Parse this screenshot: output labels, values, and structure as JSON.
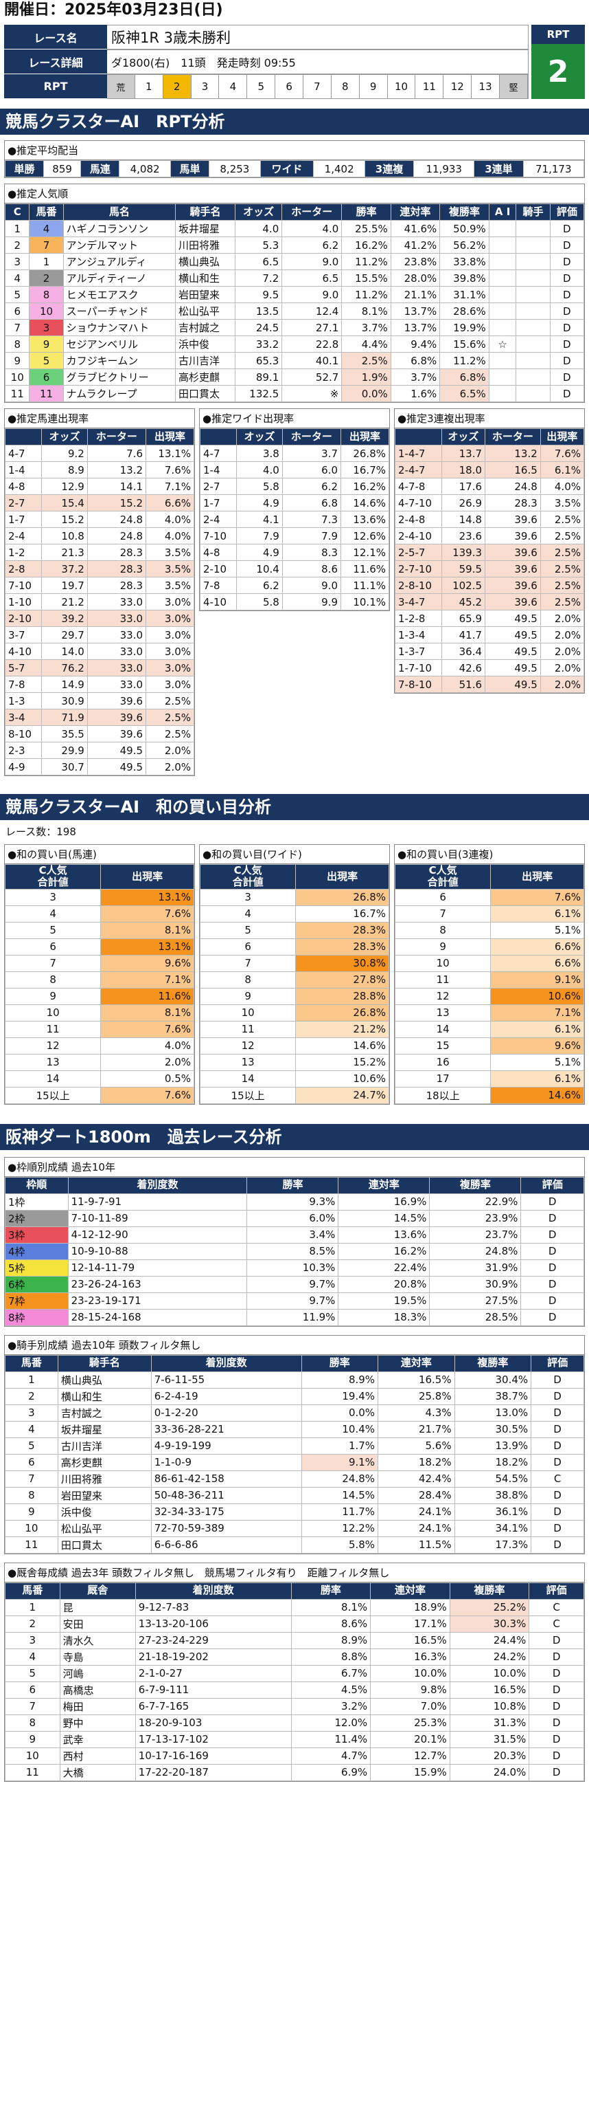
{
  "date": "開催日：2025年03月23日(日)",
  "race": {
    "labels": [
      "レース名",
      "レース詳細",
      "RPT"
    ],
    "name": "阪神1R 3歳未勝利",
    "detail": "ダ1800(右)　11頭　発走時刻 09:55",
    "scale_left": "荒",
    "scale_right": "堅",
    "scale": [
      "1",
      "2",
      "3",
      "4",
      "5",
      "6",
      "7",
      "8",
      "9",
      "10",
      "11",
      "12",
      "13"
    ],
    "rpt_label": "RPT",
    "rpt_value": "2"
  },
  "sec1": "競馬クラスターAI　RPT分析",
  "avg": {
    "title": "●推定平均配当",
    "items": [
      [
        "単勝",
        "859"
      ],
      [
        "馬連",
        "4,082"
      ],
      [
        "馬単",
        "8,253"
      ],
      [
        "ワイド",
        "1,402"
      ],
      [
        "3連複",
        "11,933"
      ],
      [
        "3連単",
        "71,173"
      ]
    ]
  },
  "pop": {
    "title": "●推定人気順",
    "headers": [
      "C",
      "馬番",
      "馬名",
      "騎手名",
      "オッズ",
      "ホーター",
      "勝率",
      "連対率",
      "複勝率",
      "A I",
      "騎手",
      "評価"
    ],
    "rows": [
      [
        "1",
        "4",
        "ハギノコランソン",
        "坂井瑠星",
        "4.0",
        "4.0",
        "25.5%",
        "41.6%",
        "50.9%",
        "",
        "",
        "D"
      ],
      [
        "2",
        "7",
        "アンデルマット",
        "川田将雅",
        "5.3",
        "6.2",
        "16.2%",
        "41.2%",
        "56.2%",
        "",
        "",
        "D"
      ],
      [
        "3",
        "1",
        "アンジュアルディ",
        "横山典弘",
        "6.5",
        "9.0",
        "11.2%",
        "23.8%",
        "33.8%",
        "",
        "",
        "D"
      ],
      [
        "4",
        "2",
        "アルディティーノ",
        "横山和生",
        "7.2",
        "6.5",
        "15.5%",
        "28.0%",
        "39.8%",
        "",
        "",
        "D"
      ],
      [
        "5",
        "8",
        "ヒメモエアスク",
        "岩田望来",
        "9.5",
        "9.0",
        "11.2%",
        "21.1%",
        "31.1%",
        "",
        "",
        "D"
      ],
      [
        "6",
        "10",
        "スーパーチャンド",
        "松山弘平",
        "13.5",
        "12.4",
        "8.1%",
        "13.7%",
        "28.6%",
        "",
        "",
        "D"
      ],
      [
        "7",
        "3",
        "ショウナンマハト",
        "吉村誠之",
        "24.5",
        "27.1",
        "3.7%",
        "13.7%",
        "19.9%",
        "",
        "",
        "D"
      ],
      [
        "8",
        "9",
        "セジアンベリル",
        "浜中俊",
        "33.2",
        "22.8",
        "4.4%",
        "9.4%",
        "15.6%",
        "☆",
        "",
        "D"
      ],
      [
        "9",
        "5",
        "カフジキームン",
        "古川吉洋",
        "65.3",
        "40.1",
        "2.5%",
        "6.8%",
        "11.2%",
        "",
        "",
        "D"
      ],
      [
        "10",
        "6",
        "グラブビクトリー",
        "高杉吏麒",
        "89.1",
        "52.7",
        "1.9%",
        "3.7%",
        "6.8%",
        "",
        "",
        "D"
      ],
      [
        "11",
        "11",
        "ナムラクレープ",
        "田口貫太",
        "132.5",
        "※",
        "0.0%",
        "1.6%",
        "6.5%",
        "",
        "",
        "D"
      ]
    ]
  },
  "umaren": {
    "title": "●推定馬連出現率",
    "headers": [
      "",
      "オッズ",
      "ホーター",
      "出現率"
    ],
    "rows": [
      [
        "4-7",
        "9.2",
        "7.6",
        "13.1%"
      ],
      [
        "1-4",
        "8.9",
        "13.2",
        "7.6%"
      ],
      [
        "4-8",
        "12.9",
        "14.1",
        "7.1%"
      ],
      [
        "2-7",
        "15.4",
        "15.2",
        "6.6%"
      ],
      [
        "1-7",
        "15.2",
        "24.8",
        "4.0%"
      ],
      [
        "2-4",
        "10.8",
        "24.8",
        "4.0%"
      ],
      [
        "1-2",
        "21.3",
        "28.3",
        "3.5%"
      ],
      [
        "2-8",
        "37.2",
        "28.3",
        "3.5%"
      ],
      [
        "7-10",
        "19.7",
        "28.3",
        "3.5%"
      ],
      [
        "1-10",
        "21.2",
        "33.0",
        "3.0%"
      ],
      [
        "2-10",
        "39.2",
        "33.0",
        "3.0%"
      ],
      [
        "3-7",
        "29.7",
        "33.0",
        "3.0%"
      ],
      [
        "4-10",
        "14.0",
        "33.0",
        "3.0%"
      ],
      [
        "5-7",
        "76.2",
        "33.0",
        "3.0%"
      ],
      [
        "7-8",
        "14.9",
        "33.0",
        "3.0%"
      ],
      [
        "1-3",
        "30.9",
        "39.6",
        "2.5%"
      ],
      [
        "3-4",
        "71.9",
        "39.6",
        "2.5%"
      ],
      [
        "8-10",
        "35.5",
        "39.6",
        "2.5%"
      ],
      [
        "2-3",
        "29.9",
        "49.5",
        "2.0%"
      ],
      [
        "4-9",
        "30.7",
        "49.5",
        "2.0%"
      ]
    ]
  },
  "wide": {
    "title": "●推定ワイド出現率",
    "headers": [
      "",
      "オッズ",
      "ホーター",
      "出現率"
    ],
    "rows": [
      [
        "4-7",
        "3.8",
        "3.7",
        "26.8%"
      ],
      [
        "1-4",
        "4.0",
        "6.0",
        "16.7%"
      ],
      [
        "2-7",
        "5.8",
        "6.2",
        "16.2%"
      ],
      [
        "1-7",
        "4.9",
        "6.8",
        "14.6%"
      ],
      [
        "2-4",
        "4.1",
        "7.3",
        "13.6%"
      ],
      [
        "7-10",
        "7.9",
        "7.9",
        "12.6%"
      ],
      [
        "4-8",
        "4.9",
        "8.3",
        "12.1%"
      ],
      [
        "2-10",
        "10.4",
        "8.6",
        "11.6%"
      ],
      [
        "7-8",
        "6.2",
        "9.0",
        "11.1%"
      ],
      [
        "4-10",
        "5.8",
        "9.9",
        "10.1%"
      ]
    ]
  },
  "sanren": {
    "title": "●推定3連複出現率",
    "headers": [
      "",
      "オッズ",
      "ホーター",
      "出現率"
    ],
    "rows": [
      [
        "1-4-7",
        "13.7",
        "13.2",
        "7.6%"
      ],
      [
        "2-4-7",
        "18.0",
        "16.5",
        "6.1%"
      ],
      [
        "4-7-8",
        "17.6",
        "24.8",
        "4.0%"
      ],
      [
        "4-7-10",
        "26.9",
        "28.3",
        "3.5%"
      ],
      [
        "2-4-8",
        "14.8",
        "39.6",
        "2.5%"
      ],
      [
        "2-4-10",
        "23.6",
        "39.6",
        "2.5%"
      ],
      [
        "2-5-7",
        "139.3",
        "39.6",
        "2.5%"
      ],
      [
        "2-7-10",
        "59.5",
        "39.6",
        "2.5%"
      ],
      [
        "2-8-10",
        "102.5",
        "39.6",
        "2.5%"
      ],
      [
        "3-4-7",
        "45.2",
        "39.6",
        "2.5%"
      ],
      [
        "1-2-8",
        "65.9",
        "49.5",
        "2.0%"
      ],
      [
        "1-3-4",
        "41.7",
        "49.5",
        "2.0%"
      ],
      [
        "1-3-7",
        "36.4",
        "49.5",
        "2.0%"
      ],
      [
        "1-7-10",
        "42.6",
        "49.5",
        "2.0%"
      ],
      [
        "7-8-10",
        "51.6",
        "49.5",
        "2.0%"
      ]
    ]
  },
  "sec2": "競馬クラスターAI　和の買い目分析",
  "race_count": "レース数：198",
  "wa_umaren": {
    "title": "●和の買い目(馬連)",
    "headers": [
      "C人気\n合計値",
      "出現率"
    ],
    "rows": [
      [
        "3",
        "13.1%"
      ],
      [
        "4",
        "7.6%"
      ],
      [
        "5",
        "8.1%"
      ],
      [
        "6",
        "13.1%"
      ],
      [
        "7",
        "9.6%"
      ],
      [
        "8",
        "7.1%"
      ],
      [
        "9",
        "11.6%"
      ],
      [
        "10",
        "8.1%"
      ],
      [
        "11",
        "7.6%"
      ],
      [
        "12",
        "4.0%"
      ],
      [
        "13",
        "2.0%"
      ],
      [
        "14",
        "0.5%"
      ],
      [
        "15以上",
        "7.6%"
      ]
    ]
  },
  "wa_wide": {
    "title": "●和の買い目(ワイド)",
    "headers": [
      "C人気\n合計値",
      "出現率"
    ],
    "rows": [
      [
        "3",
        "26.8%"
      ],
      [
        "4",
        "16.7%"
      ],
      [
        "5",
        "28.3%"
      ],
      [
        "6",
        "28.3%"
      ],
      [
        "7",
        "30.8%"
      ],
      [
        "8",
        "27.8%"
      ],
      [
        "9",
        "28.8%"
      ],
      [
        "10",
        "26.8%"
      ],
      [
        "11",
        "21.2%"
      ],
      [
        "12",
        "14.6%"
      ],
      [
        "13",
        "15.2%"
      ],
      [
        "14",
        "10.6%"
      ],
      [
        "15以上",
        "24.7%"
      ]
    ]
  },
  "wa_sanren": {
    "title": "●和の買い目(3連複)",
    "headers": [
      "C人気\n合計値",
      "出現率"
    ],
    "rows": [
      [
        "6",
        "7.6%"
      ],
      [
        "7",
        "6.1%"
      ],
      [
        "8",
        "5.1%"
      ],
      [
        "9",
        "6.6%"
      ],
      [
        "10",
        "6.6%"
      ],
      [
        "11",
        "9.1%"
      ],
      [
        "12",
        "10.6%"
      ],
      [
        "13",
        "7.1%"
      ],
      [
        "14",
        "6.1%"
      ],
      [
        "15",
        "9.6%"
      ],
      [
        "16",
        "5.1%"
      ],
      [
        "17",
        "6.1%"
      ],
      [
        "18以上",
        "14.6%"
      ]
    ]
  },
  "sec3": "阪神ダート1800m　過去レース分析",
  "waku": {
    "title": "●枠順別成績 過去10年",
    "headers": [
      "枠順",
      "着別度数",
      "勝率",
      "連対率",
      "複勝率",
      "評価"
    ],
    "rows": [
      [
        "1枠",
        "11-9-7-91",
        "9.3%",
        "16.9%",
        "22.9%",
        "D"
      ],
      [
        "2枠",
        "7-10-11-89",
        "6.0%",
        "14.5%",
        "23.9%",
        "D"
      ],
      [
        "3枠",
        "4-12-12-90",
        "3.4%",
        "13.6%",
        "23.7%",
        "D"
      ],
      [
        "4枠",
        "10-9-10-88",
        "8.5%",
        "16.2%",
        "24.8%",
        "D"
      ],
      [
        "5枠",
        "12-14-11-79",
        "10.3%",
        "22.4%",
        "31.9%",
        "D"
      ],
      [
        "6枠",
        "23-26-24-163",
        "9.7%",
        "20.8%",
        "30.9%",
        "D"
      ],
      [
        "7枠",
        "23-23-19-171",
        "9.7%",
        "19.5%",
        "27.5%",
        "D"
      ],
      [
        "8枠",
        "28-15-24-168",
        "11.9%",
        "18.3%",
        "28.5%",
        "D"
      ]
    ]
  },
  "jockey": {
    "title": "●騎手別成績 過去10年 頭数フィルタ無し",
    "headers": [
      "馬番",
      "騎手名",
      "着別度数",
      "勝率",
      "連対率",
      "複勝率",
      "評価"
    ],
    "rows": [
      [
        "1",
        "横山典弘",
        "7-6-11-55",
        "8.9%",
        "16.5%",
        "30.4%",
        "D"
      ],
      [
        "2",
        "横山和生",
        "6-2-4-19",
        "19.4%",
        "25.8%",
        "38.7%",
        "D"
      ],
      [
        "3",
        "吉村誠之",
        "0-1-2-20",
        "0.0%",
        "4.3%",
        "13.0%",
        "D"
      ],
      [
        "4",
        "坂井瑠星",
        "33-36-28-221",
        "10.4%",
        "21.7%",
        "30.5%",
        "D"
      ],
      [
        "5",
        "古川吉洋",
        "4-9-19-199",
        "1.7%",
        "5.6%",
        "13.9%",
        "D"
      ],
      [
        "6",
        "高杉吏麒",
        "1-1-0-9",
        "9.1%",
        "18.2%",
        "18.2%",
        "D"
      ],
      [
        "7",
        "川田将雅",
        "86-61-42-158",
        "24.8%",
        "42.4%",
        "54.5%",
        "C"
      ],
      [
        "8",
        "岩田望来",
        "50-48-36-211",
        "14.5%",
        "28.4%",
        "38.8%",
        "D"
      ],
      [
        "9",
        "浜中俊",
        "32-34-33-175",
        "11.7%",
        "24.1%",
        "36.1%",
        "D"
      ],
      [
        "10",
        "松山弘平",
        "72-70-59-389",
        "12.2%",
        "24.1%",
        "34.1%",
        "D"
      ],
      [
        "11",
        "田口貫太",
        "6-6-6-86",
        "5.8%",
        "11.5%",
        "17.3%",
        "D"
      ]
    ]
  },
  "stable": {
    "title": "●厩舎毎成績 過去3年 頭数フィルタ無し　競馬場フィルタ有り　距離フィルタ無し",
    "headers": [
      "馬番",
      "厩舎",
      "着別度数",
      "勝率",
      "連対率",
      "複勝率",
      "評価"
    ],
    "rows": [
      [
        "1",
        "昆",
        "9-12-7-83",
        "8.1%",
        "18.9%",
        "25.2%",
        "C"
      ],
      [
        "2",
        "安田",
        "13-13-20-106",
        "8.6%",
        "17.1%",
        "30.3%",
        "C"
      ],
      [
        "3",
        "清水久",
        "27-23-24-229",
        "8.9%",
        "16.5%",
        "24.4%",
        "D"
      ],
      [
        "4",
        "寺島",
        "21-18-19-202",
        "8.8%",
        "16.3%",
        "24.2%",
        "D"
      ],
      [
        "5",
        "河嶋",
        "2-1-0-27",
        "6.7%",
        "10.0%",
        "10.0%",
        "D"
      ],
      [
        "6",
        "高橋忠",
        "6-7-9-111",
        "4.5%",
        "9.8%",
        "16.5%",
        "D"
      ],
      [
        "7",
        "梅田",
        "6-7-7-165",
        "3.2%",
        "7.0%",
        "10.8%",
        "D"
      ],
      [
        "8",
        "野中",
        "18-20-9-103",
        "12.0%",
        "25.3%",
        "31.3%",
        "D"
      ],
      [
        "9",
        "武幸",
        "17-13-17-102",
        "11.4%",
        "20.1%",
        "31.5%",
        "D"
      ],
      [
        "10",
        "西村",
        "10-17-16-169",
        "4.7%",
        "12.7%",
        "20.3%",
        "D"
      ],
      [
        "11",
        "大橋",
        "17-22-20-187",
        "6.9%",
        "15.9%",
        "24.0%",
        "D"
      ]
    ]
  },
  "colors": {
    "navy": "#1a3560",
    "rpt_green": "#1f8a3a",
    "highlight": "#f5b800",
    "hot": "#f5931e"
  }
}
